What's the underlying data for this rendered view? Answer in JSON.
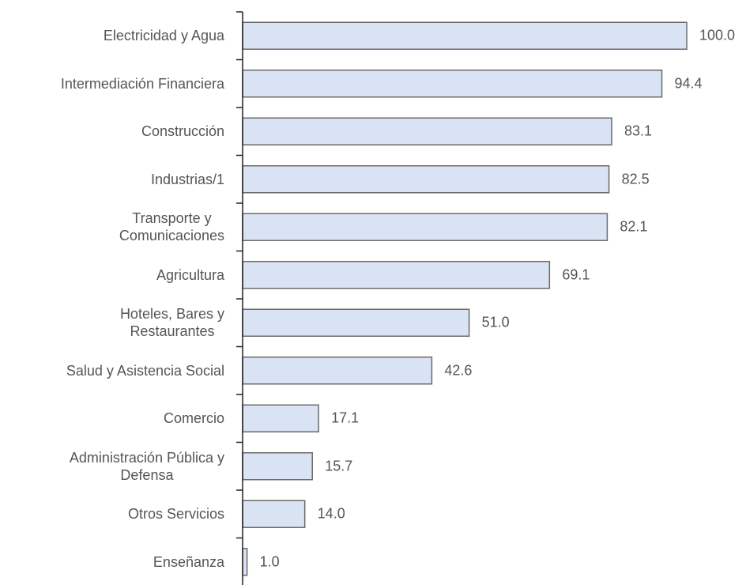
{
  "chart_data": {
    "type": "bar",
    "orientation": "horizontal",
    "categories": [
      "Electricidad y Agua",
      "Intermediación Financiera",
      "Construcción",
      "Industrias/1",
      "Transporte y\nComunicaciones",
      "Agricultura",
      "Hoteles, Bares y\nRestaurantes",
      "Salud y Asistencia Social",
      "Comercio",
      "Administración Pública y\nDefensa",
      "Otros Servicios",
      "Enseñanza"
    ],
    "values": [
      100.0,
      94.4,
      83.1,
      82.5,
      82.1,
      69.1,
      51.0,
      42.6,
      17.1,
      15.7,
      14.0,
      1.0
    ],
    "value_labels": [
      "100.0",
      "94.4",
      "83.1",
      "82.5",
      "82.1",
      "69.1",
      "51.0",
      "42.6",
      "17.1",
      "15.7",
      "14.0",
      "1.0"
    ],
    "color": "#dae3f3",
    "edge_color": "#6b6b6b",
    "xlim": [
      0,
      100
    ]
  }
}
